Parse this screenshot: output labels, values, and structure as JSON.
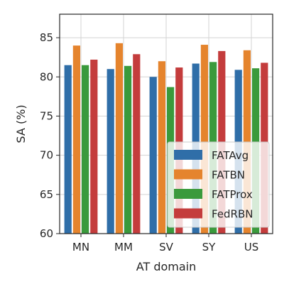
{
  "chart_data": {
    "type": "bar",
    "categories": [
      "MN",
      "MM",
      "SV",
      "SY",
      "US"
    ],
    "series": [
      {
        "name": "FATAvg",
        "color": "#2f6ea8",
        "values": [
          81.5,
          81.0,
          80.0,
          81.7,
          80.9
        ]
      },
      {
        "name": "FATBN",
        "color": "#e5842d",
        "values": [
          84.0,
          84.3,
          82.0,
          84.1,
          83.4
        ]
      },
      {
        "name": "FATProx",
        "color": "#3a9a3c",
        "values": [
          81.5,
          81.4,
          78.7,
          81.9,
          81.1
        ]
      },
      {
        "name": "FedRBN",
        "color": "#c43c3c",
        "values": [
          82.2,
          82.9,
          81.2,
          83.3,
          81.8
        ]
      }
    ],
    "xlabel": "AT domain",
    "ylabel": "SA (%)",
    "ylim": [
      60,
      88
    ],
    "yticks": [
      60,
      65,
      70,
      75,
      80,
      85
    ],
    "grid": true,
    "legend_position": "lower-right"
  }
}
